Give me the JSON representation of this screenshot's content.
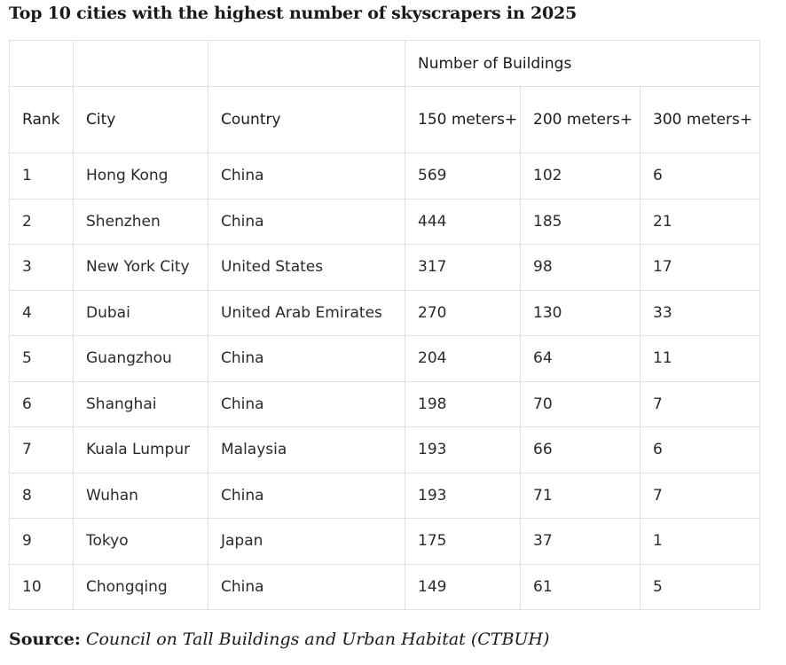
{
  "title": "Top 10 cities with the highest number of skyscrapers in 2025",
  "table": {
    "group_header": "Number of Buildings",
    "columns": {
      "rank": "Rank",
      "city": "City",
      "country": "Country",
      "h150": "150 meters+",
      "h200": "200 meters+",
      "h300": "300 meters+"
    },
    "rows": [
      {
        "rank": "1",
        "city": "Hong Kong",
        "country": "China",
        "h150": "569",
        "h200": "102",
        "h300": "6"
      },
      {
        "rank": "2",
        "city": "Shenzhen",
        "country": "China",
        "h150": "444",
        "h200": "185",
        "h300": "21"
      },
      {
        "rank": "3",
        "city": "New York City",
        "country": "United States",
        "h150": "317",
        "h200": "98",
        "h300": "17"
      },
      {
        "rank": "4",
        "city": "Dubai",
        "country": "United Arab Emirates",
        "h150": "270",
        "h200": "130",
        "h300": "33"
      },
      {
        "rank": "5",
        "city": "Guangzhou",
        "country": "China",
        "h150": "204",
        "h200": "64",
        "h300": "11"
      },
      {
        "rank": "6",
        "city": "Shanghai",
        "country": "China",
        "h150": "198",
        "h200": "70",
        "h300": "7"
      },
      {
        "rank": "7",
        "city": "Kuala Lumpur",
        "country": "Malaysia",
        "h150": "193",
        "h200": "66",
        "h300": "6"
      },
      {
        "rank": "8",
        "city": "Wuhan",
        "country": "China",
        "h150": "193",
        "h200": "71",
        "h300": "7"
      },
      {
        "rank": "9",
        "city": "Tokyo",
        "country": "Japan",
        "h150": "175",
        "h200": "37",
        "h300": "1"
      },
      {
        "rank": "10",
        "city": "Chongqing",
        "country": "China",
        "h150": "149",
        "h200": "61",
        "h300": "5"
      }
    ]
  },
  "source": {
    "label": "Source:",
    "text": "Council on Tall Buildings and Urban Habitat (CTBUH)"
  }
}
